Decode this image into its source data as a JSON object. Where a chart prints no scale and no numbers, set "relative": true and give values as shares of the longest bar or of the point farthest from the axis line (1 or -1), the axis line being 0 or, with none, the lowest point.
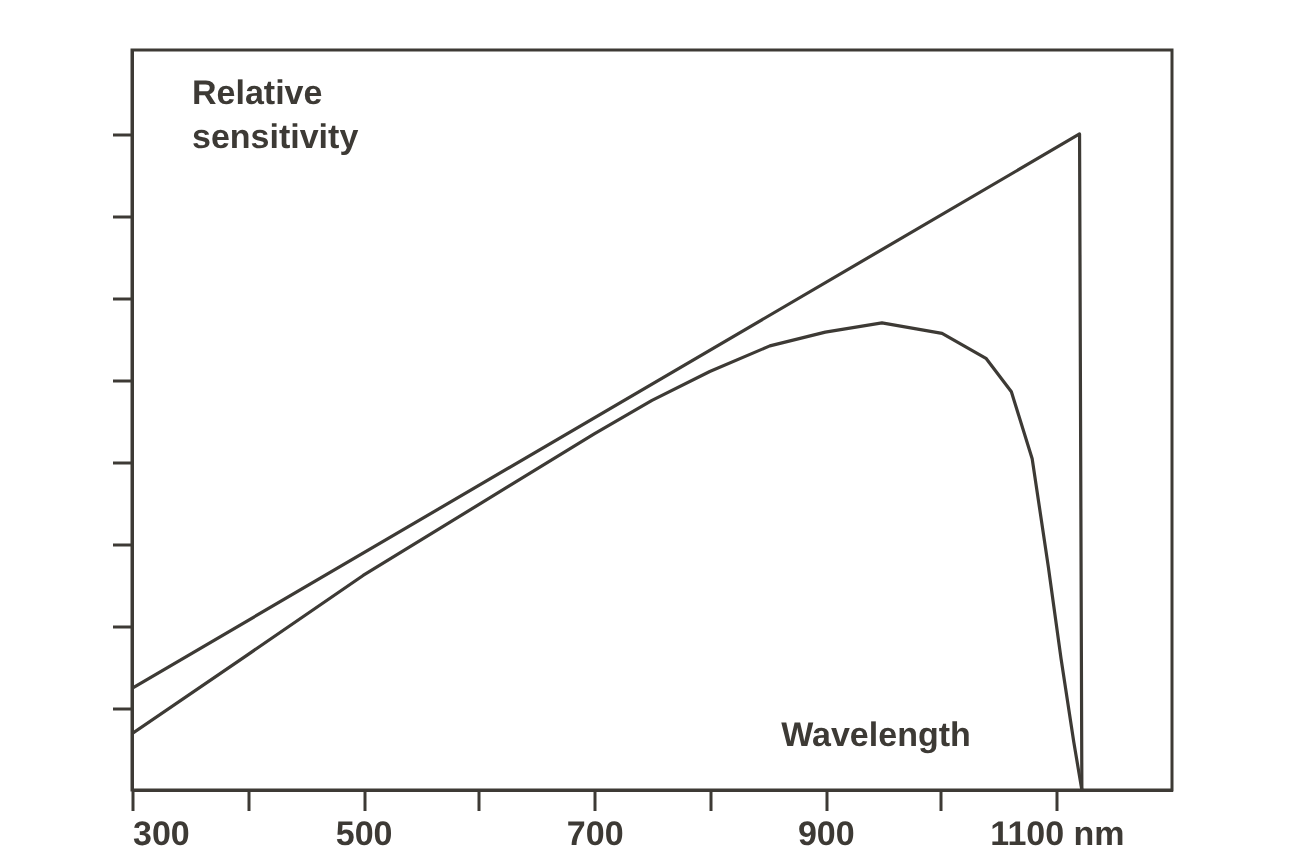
{
  "chart_data": {
    "type": "line",
    "relative": true,
    "xlabel": "Wavelength",
    "ylabel": "Relative sensitivity",
    "xlim": [
      300,
      1200
    ],
    "xticks": [
      300,
      {
        "value": 400,
        "label": null
      },
      500,
      {
        "value": 600,
        "label": null
      },
      700,
      {
        "value": 800,
        "label": null
      },
      900,
      {
        "value": 1000,
        "label": null
      },
      {
        "value": 1100,
        "label": "1100 nm"
      }
    ],
    "tick_labels": "x",
    "grid": false,
    "marker": "none",
    "line_style": "solid",
    "series": [
      {
        "color": "#3d3a35",
        "x": [
          300,
          1120,
          1122
        ],
        "values": [
          0.155,
          1.0,
          0
        ]
      },
      {
        "color": "#3d3a35",
        "x": [
          300,
          400,
          500,
          600,
          700,
          750,
          800,
          852,
          900,
          949,
          1001,
          1039,
          1061,
          1079,
          1093,
          1104,
          1115,
          1122
        ],
        "values": [
          0.086,
          0.206,
          0.327,
          0.435,
          0.543,
          0.594,
          0.638,
          0.677,
          0.698,
          0.712,
          0.696,
          0.658,
          0.607,
          0.505,
          0.34,
          0.2,
          0.073,
          0
        ]
      }
    ]
  }
}
